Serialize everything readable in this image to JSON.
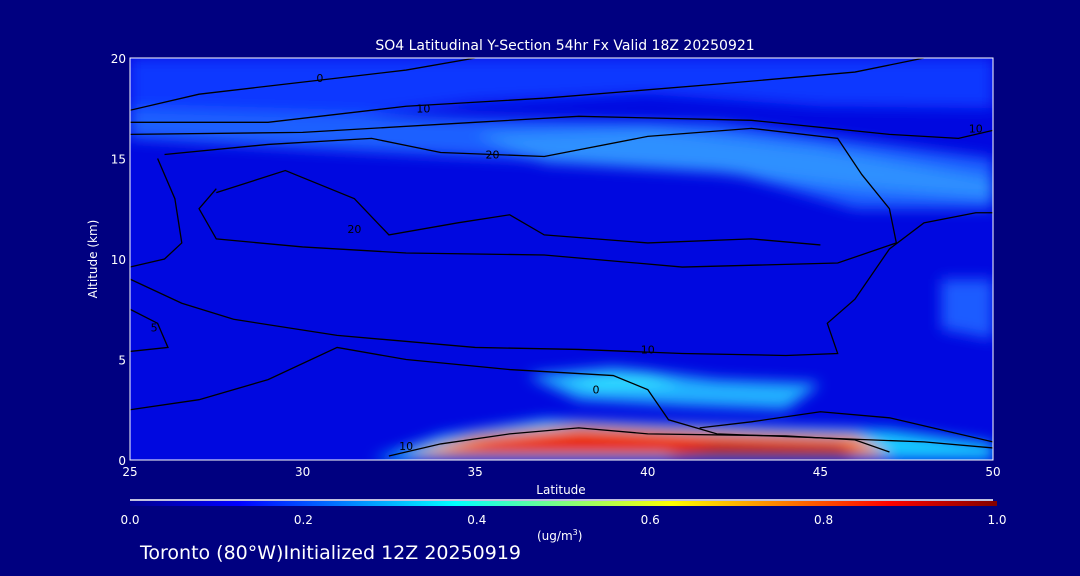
{
  "chart_data": {
    "type": "heatmap",
    "title": "SO4 Latitudinal Y-Section 54hr  Fx Valid 18Z 20250921",
    "xlabel": "Latitude",
    "ylabel": "Altitude (km)",
    "xlim": [
      25,
      50
    ],
    "ylim": [
      0,
      20
    ],
    "xticks": [
      "25",
      "30",
      "35",
      "40",
      "45",
      "50"
    ],
    "yticks": [
      "0",
      "5",
      "10",
      "15",
      "20"
    ],
    "colorbar": {
      "label": "(ug/m",
      "label_sup": "3",
      "label_close": ")",
      "range": [
        0.0,
        1.0
      ],
      "ticks": [
        "0.0",
        "0.2",
        "0.4",
        "0.6",
        "0.8",
        "1.0"
      ],
      "colors": [
        "#000090",
        "#0000ff",
        "#0080ff",
        "#00ffff",
        "#80ff80",
        "#ffff00",
        "#ff8000",
        "#ff0000",
        "#800000"
      ]
    },
    "fill_regions": [
      {
        "value": 0.12,
        "color": "#1038ff",
        "points": [
          [
            25,
            20
          ],
          [
            50,
            20
          ],
          [
            50,
            17.5
          ],
          [
            45,
            17.6
          ],
          [
            40,
            18.2
          ],
          [
            35,
            17.8
          ],
          [
            30,
            16.8
          ],
          [
            25,
            16.0
          ]
        ]
      },
      {
        "value": 0.16,
        "color": "#1f60ff",
        "points": [
          [
            25,
            17.5
          ],
          [
            35,
            17
          ],
          [
            42,
            16.8
          ],
          [
            50,
            15.0
          ],
          [
            50,
            12.5
          ],
          [
            46,
            12.5
          ],
          [
            42,
            14.5
          ],
          [
            36,
            15.0
          ],
          [
            30,
            15.5
          ],
          [
            25,
            16.0
          ]
        ]
      },
      {
        "value": 0.22,
        "color": "#2f90ff",
        "points": [
          [
            35,
            16.2
          ],
          [
            40,
            16.5
          ],
          [
            45,
            15.5
          ],
          [
            50,
            14
          ],
          [
            50,
            13
          ],
          [
            46,
            13.5
          ],
          [
            42,
            14.3
          ],
          [
            37,
            14.8
          ]
        ]
      },
      {
        "value": 0.18,
        "color": "#1a5cff",
        "points": [
          [
            48.5,
            9
          ],
          [
            50,
            9
          ],
          [
            50,
            6
          ],
          [
            48.5,
            6.5
          ]
        ]
      },
      {
        "value": 0.3,
        "color": "#20b0ff",
        "points": [
          [
            36.5,
            4.2
          ],
          [
            39,
            4.6
          ],
          [
            42,
            4.0
          ],
          [
            45,
            3.8
          ],
          [
            44,
            2.5
          ],
          [
            41,
            2.7
          ],
          [
            38,
            3.0
          ]
        ]
      },
      {
        "value": 0.4,
        "color": "#30e0ff",
        "points": [
          [
            37.5,
            4.0
          ],
          [
            40,
            4.3
          ],
          [
            41,
            3.7
          ],
          [
            38.5,
            3.5
          ]
        ]
      },
      {
        "value": 0.35,
        "color": "#18c8ff",
        "points": [
          [
            32,
            0
          ],
          [
            50,
            0
          ],
          [
            50,
            0.8
          ],
          [
            47,
            1.5
          ],
          [
            44,
            1.6
          ],
          [
            40,
            1.8
          ],
          [
            37,
            2.0
          ],
          [
            34,
            1.2
          ]
        ]
      },
      {
        "value": 0.7,
        "color": "#ff8a00",
        "points": [
          [
            33,
            0.2
          ],
          [
            47,
            0.2
          ],
          [
            46,
            1.2
          ],
          [
            42,
            1.4
          ],
          [
            38,
            1.7
          ],
          [
            35,
            1.2
          ]
        ]
      },
      {
        "value": 0.85,
        "color": "#e81000",
        "points": [
          [
            34,
            0.3
          ],
          [
            46.5,
            0.3
          ],
          [
            45.5,
            0.9
          ],
          [
            42,
            1.1
          ],
          [
            38,
            1.4
          ],
          [
            35.5,
            1.0
          ]
        ]
      },
      {
        "value": 0.95,
        "color": "#a00000",
        "points": [
          [
            40.5,
            0.1
          ],
          [
            46,
            0.1
          ],
          [
            45.5,
            0.6
          ],
          [
            42,
            0.7
          ]
        ]
      }
    ],
    "contours": [
      {
        "label": "0",
        "label_at": [
          30.5,
          19.0
        ],
        "points": [
          [
            25,
            17.4
          ],
          [
            27,
            18.2
          ],
          [
            29,
            18.6
          ],
          [
            31,
            19.0
          ],
          [
            33,
            19.4
          ],
          [
            35,
            20
          ]
        ]
      },
      {
        "label": "10",
        "label_at": [
          33.5,
          17.5
        ],
        "points": [
          [
            25,
            16.8
          ],
          [
            29,
            16.8
          ],
          [
            33,
            17.6
          ],
          [
            37,
            18.0
          ],
          [
            42,
            18.7
          ],
          [
            46,
            19.3
          ],
          [
            48,
            20
          ]
        ]
      },
      {
        "label": "10",
        "label_at": [
          49.5,
          16.5
        ],
        "points": [
          [
            25,
            16.2
          ],
          [
            30,
            16.3
          ],
          [
            35,
            16.8
          ],
          [
            38,
            17.1
          ],
          [
            43,
            16.9
          ],
          [
            47,
            16.2
          ],
          [
            49,
            16.0
          ],
          [
            50,
            16.4
          ]
        ]
      },
      {
        "label": "20",
        "label_at": [
          35.5,
          15.2
        ],
        "points": [
          [
            26,
            15.2
          ],
          [
            29,
            15.7
          ],
          [
            32,
            16.0
          ],
          [
            34,
            15.3
          ],
          [
            37,
            15.1
          ],
          [
            40,
            16.1
          ],
          [
            43,
            16.5
          ],
          [
            45.5,
            16.0
          ],
          [
            46.2,
            14.2
          ],
          [
            47,
            12.5
          ],
          [
            47.2,
            10.8
          ],
          [
            45.5,
            9.8
          ],
          [
            41,
            9.6
          ],
          [
            37,
            10.2
          ],
          [
            33,
            10.3
          ],
          [
            30,
            10.6
          ],
          [
            27.5,
            11.0
          ],
          [
            27,
            12.5
          ],
          [
            27.5,
            13.5
          ]
        ]
      },
      {
        "label": "20",
        "label_at": [
          31.5,
          11.5
        ],
        "points": [
          [
            27.5,
            13.3
          ],
          [
            29.5,
            14.4
          ],
          [
            31.5,
            13.0
          ],
          [
            32.5,
            11.2
          ],
          [
            34.5,
            11.8
          ],
          [
            36,
            12.2
          ],
          [
            37,
            11.2
          ],
          [
            40,
            10.8
          ],
          [
            43,
            11.0
          ],
          [
            45,
            10.7
          ]
        ]
      },
      {
        "label": "10",
        "label_at": [
          40,
          5.5
        ],
        "points": [
          [
            25,
            9.0
          ],
          [
            26.5,
            7.8
          ],
          [
            28,
            7.0
          ],
          [
            31,
            6.2
          ],
          [
            35,
            5.6
          ],
          [
            38,
            5.5
          ],
          [
            41,
            5.3
          ],
          [
            44,
            5.2
          ],
          [
            45.5,
            5.3
          ],
          [
            45.2,
            6.8
          ],
          [
            46,
            8.0
          ],
          [
            47,
            10.5
          ],
          [
            48,
            11.8
          ],
          [
            49.5,
            12.3
          ],
          [
            50,
            12.3
          ]
        ]
      },
      {
        "label": "",
        "label_at": [
          26.5,
          10.0
        ],
        "points": [
          [
            25.8,
            15.0
          ],
          [
            26.3,
            13.0
          ],
          [
            26.5,
            10.8
          ],
          [
            26,
            10.0
          ],
          [
            25,
            9.6
          ]
        ]
      },
      {
        "label": "5",
        "label_at": [
          25.7,
          6.6
        ],
        "points": [
          [
            25,
            7.5
          ],
          [
            25.8,
            6.8
          ],
          [
            26.1,
            5.6
          ],
          [
            25,
            5.4
          ]
        ]
      },
      {
        "label": "0",
        "label_at": [
          38.5,
          3.5
        ],
        "points": [
          [
            25,
            2.5
          ],
          [
            27,
            3.0
          ],
          [
            29,
            4.0
          ],
          [
            31,
            5.6
          ],
          [
            33,
            5.0
          ],
          [
            36,
            4.5
          ],
          [
            39,
            4.2
          ],
          [
            40,
            3.5
          ],
          [
            40.6,
            2.0
          ],
          [
            42,
            1.3
          ],
          [
            45,
            1.1
          ],
          [
            48,
            0.9
          ],
          [
            50,
            0.6
          ]
        ]
      },
      {
        "label": "",
        "label_at": [
          45,
          2
        ],
        "points": [
          [
            41.5,
            1.6
          ],
          [
            43,
            1.9
          ],
          [
            45,
            2.4
          ],
          [
            47,
            2.1
          ],
          [
            49,
            1.3
          ],
          [
            50,
            0.9
          ]
        ]
      },
      {
        "label": "10",
        "label_at": [
          33,
          0.7
        ],
        "points": [
          [
            32.5,
            0.2
          ],
          [
            34,
            0.8
          ],
          [
            36,
            1.3
          ],
          [
            38,
            1.6
          ],
          [
            40,
            1.3
          ],
          [
            44,
            1.2
          ],
          [
            46,
            1.0
          ],
          [
            47,
            0.4
          ]
        ]
      }
    ]
  },
  "footer": {
    "text": "Toronto (80°W)Initialized 12Z 20250919"
  }
}
